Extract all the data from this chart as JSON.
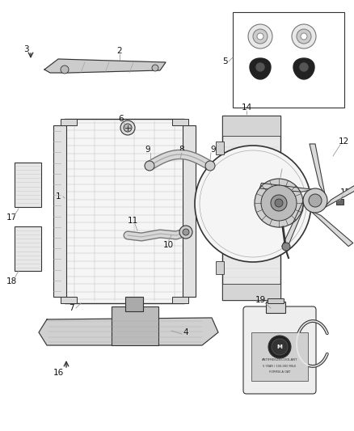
{
  "bg_color": "#ffffff",
  "line_color": "#333333",
  "fig_width": 4.38,
  "fig_height": 5.33,
  "dpi": 100,
  "xlim": [
    0,
    438
  ],
  "ylim": [
    0,
    533
  ]
}
